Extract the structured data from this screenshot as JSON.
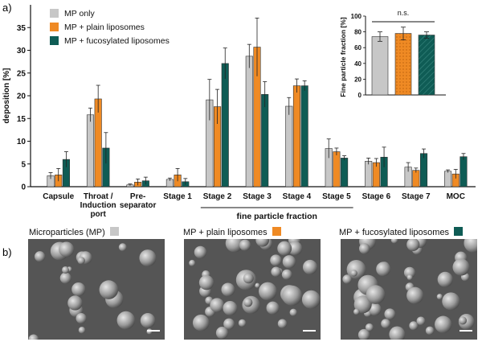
{
  "panel_a": "a)",
  "panel_b": "b)",
  "colors": {
    "mp_only": "#c7c7c7",
    "plain": "#ef8a24",
    "fucosylated": "#0f5c55",
    "axis": "#111111"
  },
  "chart_data": [
    {
      "type": "bar",
      "ylabel": "deposition [%]",
      "ylim": [
        0,
        40
      ],
      "yticks": [
        0,
        5,
        10,
        15,
        20,
        25,
        30,
        35
      ],
      "categories": [
        "Capsule",
        "Throat / Induction port",
        "Pre-separator",
        "Stage 1",
        "Stage 2",
        "Stage 3",
        "Stage 4",
        "Stage 5",
        "Stage 6",
        "Stage 7",
        "MOC"
      ],
      "category_lines": [
        [
          "Capsule"
        ],
        [
          "Throat /",
          "Induction",
          "port"
        ],
        [
          "Pre-",
          "separator"
        ],
        [
          "Stage 1"
        ],
        [
          "Stage 2"
        ],
        [
          "Stage 3"
        ],
        [
          "Stage 4"
        ],
        [
          "Stage 5"
        ],
        [
          "Stage 6"
        ],
        [
          "Stage 7"
        ],
        [
          "MOC"
        ]
      ],
      "series": [
        {
          "name": "MP only",
          "values": [
            2.4,
            15.8,
            0.4,
            1.6,
            19.1,
            28.7,
            17.7,
            8.4,
            5.6,
            4.3,
            3.4
          ],
          "errors": [
            0.7,
            1.5,
            0.2,
            0.3,
            4.5,
            2.6,
            1.9,
            2.1,
            0.7,
            1.0,
            0.3
          ]
        },
        {
          "name": "MP + plain liposomes",
          "values": [
            2.6,
            19.3,
            1.0,
            2.6,
            17.6,
            30.7,
            22.2,
            7.7,
            5.3,
            3.6,
            2.8
          ],
          "errors": [
            1.4,
            3.0,
            0.7,
            1.4,
            3.8,
            6.4,
            1.5,
            0.8,
            0.9,
            0.5,
            1.0
          ]
        },
        {
          "name": "MP + fucosylated liposomes",
          "values": [
            6.0,
            8.5,
            1.3,
            1.1,
            27.1,
            20.3,
            22.2,
            6.3,
            6.5,
            7.3,
            6.6
          ],
          "errors": [
            1.7,
            3.4,
            0.8,
            0.7,
            3.4,
            2.8,
            1.1,
            0.5,
            2.2,
            1.0,
            0.7
          ]
        }
      ],
      "bracket_label": "fine particle fraction",
      "legend_position": "top-left"
    },
    {
      "type": "bar",
      "ylabel": "Fine particle fraction [%]",
      "ylim": [
        0,
        100
      ],
      "yticks": [
        0,
        20,
        40,
        60,
        80,
        100
      ],
      "categories": [
        "MP only",
        "MP + plain liposomes",
        "MP + fucosylated liposomes"
      ],
      "values": [
        74,
        78,
        76
      ],
      "errors": [
        6,
        8,
        4
      ],
      "annotation": "n.s.",
      "position": "top-right inset"
    }
  ],
  "images": [
    {
      "caption": "Microparticles (MP)",
      "color_key": "mp_only"
    },
    {
      "caption": "MP + plain liposomes",
      "color_key": "plain"
    },
    {
      "caption": "MP + fucosylated liposomes",
      "color_key": "fucosylated"
    }
  ]
}
